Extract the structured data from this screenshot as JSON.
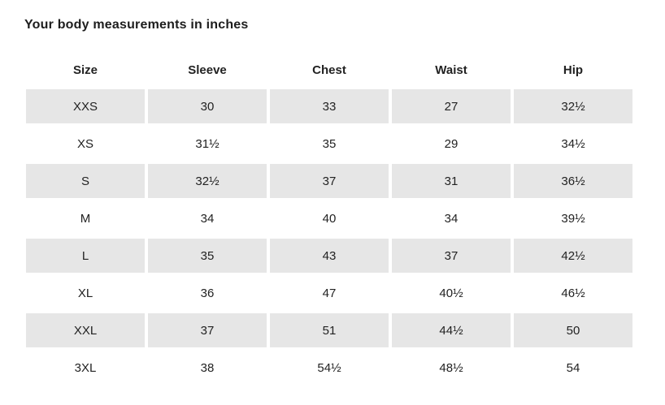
{
  "title": "Your body measurements in inches",
  "table": {
    "headers": [
      "Size",
      "Sleeve",
      "Chest",
      "Waist",
      "Hip"
    ],
    "rows": [
      [
        "XXS",
        "30",
        "33",
        "27",
        "32½"
      ],
      [
        "XS",
        "31½",
        "35",
        "29",
        "34½"
      ],
      [
        "S",
        "32½",
        "37",
        "31",
        "36½"
      ],
      [
        "M",
        "34",
        "40",
        "34",
        "39½"
      ],
      [
        "L",
        "35",
        "43",
        "37",
        "42½"
      ],
      [
        "XL",
        "36",
        "47",
        "40½",
        "46½"
      ],
      [
        "XXL",
        "37",
        "51",
        "44½",
        "50"
      ],
      [
        "3XL",
        "38",
        "54½",
        "48½",
        "54"
      ]
    ],
    "striped_row_indexes": [
      0,
      2,
      4,
      6
    ]
  },
  "colors": {
    "background": "#ffffff",
    "row_stripe": "#e6e6e6",
    "text": "#222222",
    "title_text": "#1d1d1d"
  }
}
